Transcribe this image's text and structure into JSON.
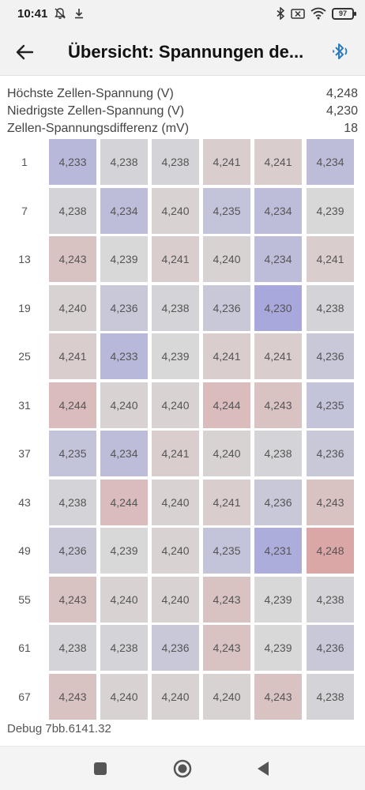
{
  "status_bar": {
    "time": "10:41",
    "battery": "97",
    "icons": [
      "bell-off-icon",
      "download-icon",
      "bluetooth-icon",
      "sim-off-icon",
      "wifi-icon",
      "battery-icon"
    ]
  },
  "app_bar": {
    "title": "Übersicht: Spannungen de...",
    "back_icon": "arrow-left-icon",
    "bluetooth_icon": "bluetooth-audio-icon"
  },
  "stats": [
    {
      "label": "Höchste Zellen-Spannung (V)",
      "value": "4,248"
    },
    {
      "label": "Niedrigste Zellen-Spannung (V)",
      "value": "4,230"
    },
    {
      "label": "Zellen-Spannungsdifferenz (mV)",
      "value": "18"
    }
  ],
  "cells": {
    "min": 4.23,
    "max": 4.248,
    "colors": {
      "low": "#a8a8dc",
      "mid": "#d8d8d8",
      "high": "#dba6a6"
    },
    "rows": [
      {
        "label": "1",
        "values": [
          "4,233",
          "4,238",
          "4,238",
          "4,241",
          "4,241",
          "4,234"
        ]
      },
      {
        "label": "7",
        "values": [
          "4,238",
          "4,234",
          "4,240",
          "4,235",
          "4,234",
          "4,239"
        ]
      },
      {
        "label": "13",
        "values": [
          "4,243",
          "4,239",
          "4,241",
          "4,240",
          "4,234",
          "4,241"
        ]
      },
      {
        "label": "19",
        "values": [
          "4,240",
          "4,236",
          "4,238",
          "4,236",
          "4,230",
          "4,238"
        ]
      },
      {
        "label": "25",
        "values": [
          "4,241",
          "4,233",
          "4,239",
          "4,241",
          "4,241",
          "4,236"
        ]
      },
      {
        "label": "31",
        "values": [
          "4,244",
          "4,240",
          "4,240",
          "4,244",
          "4,243",
          "4,235"
        ]
      },
      {
        "label": "37",
        "values": [
          "4,235",
          "4,234",
          "4,241",
          "4,240",
          "4,238",
          "4,236"
        ]
      },
      {
        "label": "43",
        "values": [
          "4,238",
          "4,244",
          "4,240",
          "4,241",
          "4,236",
          "4,243"
        ]
      },
      {
        "label": "49",
        "values": [
          "4,236",
          "4,239",
          "4,240",
          "4,235",
          "4,231",
          "4,248"
        ]
      },
      {
        "label": "55",
        "values": [
          "4,243",
          "4,240",
          "4,240",
          "4,243",
          "4,239",
          "4,238"
        ]
      },
      {
        "label": "61",
        "values": [
          "4,238",
          "4,238",
          "4,236",
          "4,243",
          "4,239",
          "4,236"
        ]
      },
      {
        "label": "67",
        "values": [
          "4,243",
          "4,240",
          "4,240",
          "4,240",
          "4,243",
          "4,238"
        ]
      }
    ]
  },
  "debug": "Debug 7bb.6141.32",
  "nav_bar": {
    "recents_icon": "square-icon",
    "home_icon": "home-circle-icon",
    "back_icon": "triangle-back-icon"
  }
}
